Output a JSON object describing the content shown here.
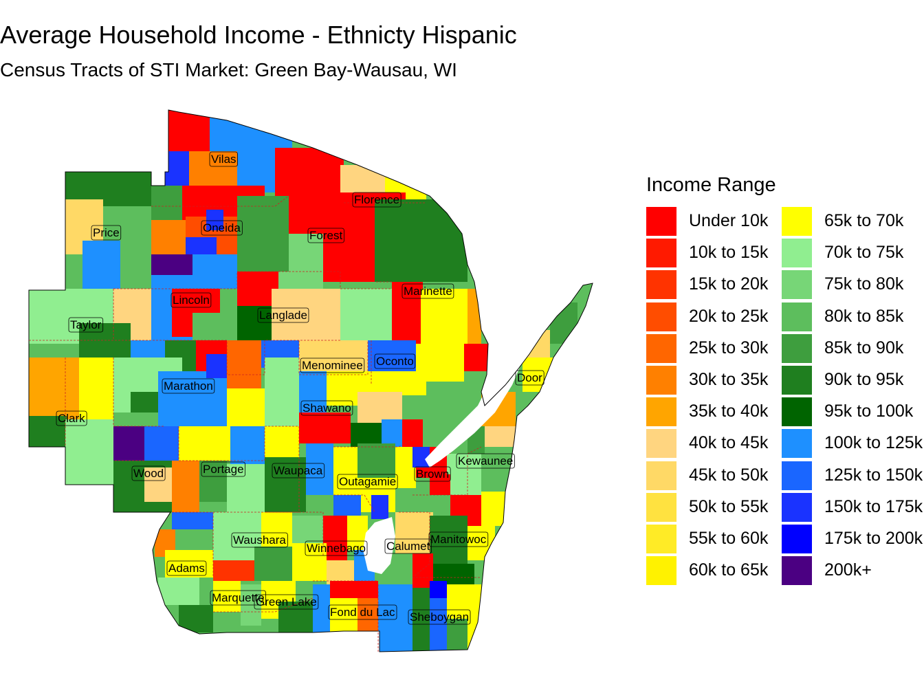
{
  "title": "Average Household Income - Ethnicty Hispanic",
  "subtitle": "Census Tracts of STI Market: Green Bay-Wausau, WI",
  "legend": {
    "title": "Income Range",
    "items": [
      {
        "label": "Under 10k",
        "color": "#FF0000"
      },
      {
        "label": "10k to 15k",
        "color": "#FF1A00"
      },
      {
        "label": "15k to 20k",
        "color": "#FF3300"
      },
      {
        "label": "20k to 25k",
        "color": "#FF4D00"
      },
      {
        "label": "25k to 30k",
        "color": "#FF6600"
      },
      {
        "label": "30k to 35k",
        "color": "#FF8000"
      },
      {
        "label": "35k to 40k",
        "color": "#FFA500"
      },
      {
        "label": "40k to 45k",
        "color": "#FFD580"
      },
      {
        "label": "45k to 50k",
        "color": "#FFD966"
      },
      {
        "label": "50k to 55k",
        "color": "#FFE240"
      },
      {
        "label": "55k to 60k",
        "color": "#FFEB26"
      },
      {
        "label": "60k to 65k",
        "color": "#FFF200"
      },
      {
        "label": "65k to 70k",
        "color": "#FFFF00"
      },
      {
        "label": "70k to 75k",
        "color": "#90EE90"
      },
      {
        "label": "75k to 80k",
        "color": "#77D677"
      },
      {
        "label": "80k to 85k",
        "color": "#5DBE5D"
      },
      {
        "label": "85k to 90k",
        "color": "#3E9E3E"
      },
      {
        "label": "90k to 95k",
        "color": "#1F7F1F"
      },
      {
        "label": "95k to 100k",
        "color": "#006400"
      },
      {
        "label": "100k to 125k",
        "color": "#1E90FF"
      },
      {
        "label": "125k to 150k",
        "color": "#1A66FF"
      },
      {
        "label": "150k to 175k",
        "color": "#1A33FF"
      },
      {
        "label": "175k to 200k",
        "color": "#0000FF"
      },
      {
        "label": "200k+",
        "color": "#4B0082"
      }
    ]
  },
  "counties": [
    "Vilas",
    "Florence",
    "Oneida",
    "Forest",
    "Price",
    "Marinette",
    "Lincoln",
    "Langlade",
    "Taylor",
    "Menominee",
    "Oconto",
    "Door",
    "Marathon",
    "Shawano",
    "Clark",
    "Kewaunee",
    "Wood",
    "Portage",
    "Waupaca",
    "Outagamie",
    "Brown",
    "Waushara",
    "Winnebago",
    "Calumet",
    "Manitowoc",
    "Adams",
    "Marquette",
    "Green Lake",
    "Fond du Lac",
    "Sheboygan"
  ]
}
